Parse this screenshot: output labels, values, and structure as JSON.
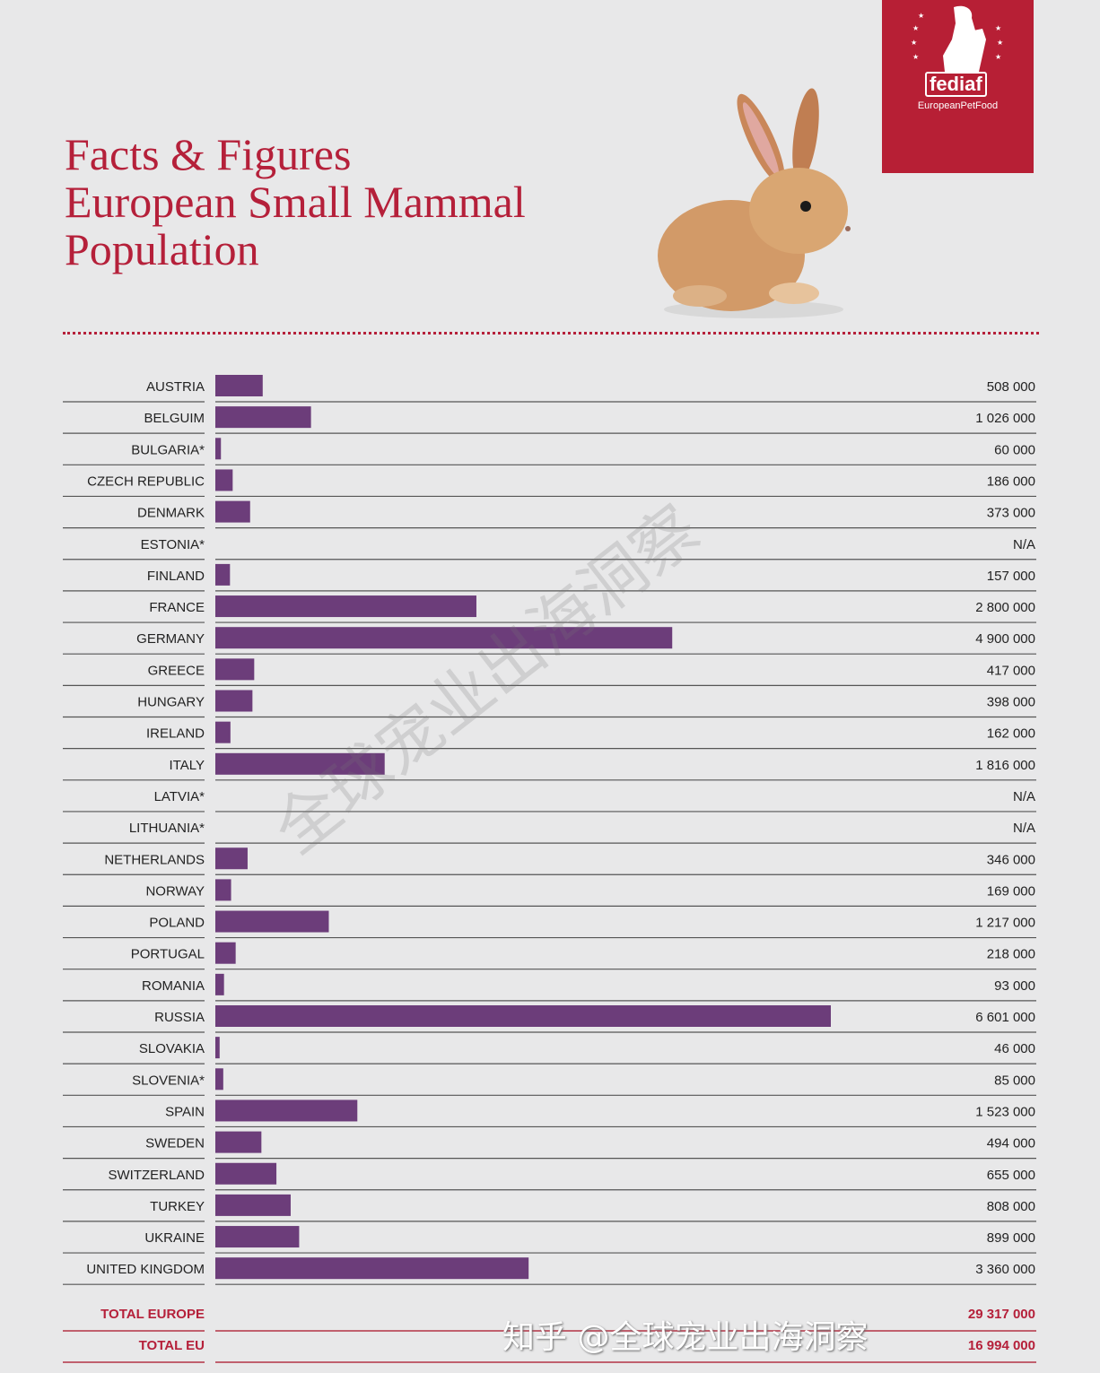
{
  "title_lines": [
    "Facts & Figures",
    "European Small Mammal",
    "Population"
  ],
  "logo": {
    "brand": "fediaf",
    "tagline": "EuropeanPetFood"
  },
  "watermarks": {
    "diagonal": "全球宠业出海洞察",
    "corner": "知乎 @全球宠业出海洞察"
  },
  "colors": {
    "bar": "#6c3d7a",
    "accent": "#b5203a",
    "background": "#e8e8e9"
  },
  "chart_data": {
    "type": "bar",
    "orientation": "horizontal",
    "categories": [
      "AUSTRIA",
      "BELGUIM",
      "BULGARIA*",
      "CZECH REPUBLIC",
      "DENMARK",
      "ESTONIA*",
      "FINLAND",
      "FRANCE",
      "GERMANY",
      "GREECE",
      "HUNGARY",
      "IRELAND",
      "ITALY",
      "LATVIA*",
      "LITHUANIA*",
      "NETHERLANDS",
      "NORWAY",
      "POLAND",
      "PORTUGAL",
      "ROMANIA",
      "RUSSIA",
      "SLOVAKIA",
      "SLOVENIA*",
      "SPAIN",
      "SWEDEN",
      "SWITZERLAND",
      "TURKEY",
      "UKRAINE",
      "UNITED KINGDOM"
    ],
    "values": [
      508000,
      1026000,
      60000,
      186000,
      373000,
      null,
      157000,
      2800000,
      4900000,
      417000,
      398000,
      162000,
      1816000,
      null,
      null,
      346000,
      169000,
      1217000,
      218000,
      93000,
      6601000,
      46000,
      85000,
      1523000,
      494000,
      655000,
      808000,
      899000,
      3360000
    ],
    "value_labels": [
      "508 000",
      "1 026 000",
      "60 000",
      "186 000",
      "373 000",
      "N/A",
      "157 000",
      "2 800 000",
      "4 900 000",
      "417 000",
      "398 000",
      "162 000",
      "1 816 000",
      "N/A",
      "N/A",
      "346 000",
      "169 000",
      "1 217 000",
      "218 000",
      "93 000",
      "6 601 000",
      "46 000",
      "85 000",
      "1 523 000",
      "494 000",
      "655 000",
      "808 000",
      "899 000",
      "3 360 000"
    ],
    "totals": [
      {
        "label": "TOTAL EUROPE",
        "value": "29 317 000"
      },
      {
        "label": "TOTAL EU",
        "value": "16 994 000"
      }
    ]
  }
}
